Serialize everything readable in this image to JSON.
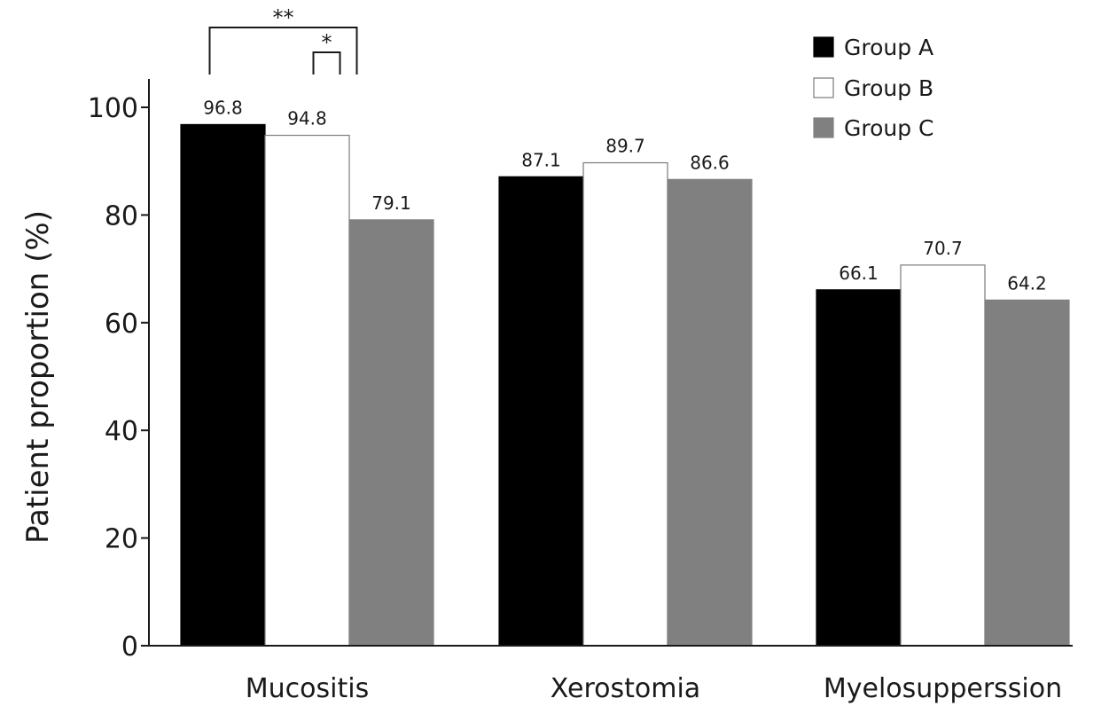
{
  "chart_data": {
    "type": "bar",
    "title": "",
    "xlabel": "",
    "ylabel": "Patient proportion (%)",
    "ylim": [
      0,
      100
    ],
    "yticks": [
      0,
      20,
      40,
      60,
      80,
      100
    ],
    "grid": false,
    "legend_position": "top-right",
    "categories": [
      "Mucositis",
      "Xerostomia",
      "Myelosupperssion"
    ],
    "series": [
      {
        "name": "Group A",
        "color": "#000000",
        "values": [
          96.8,
          87.1,
          66.1
        ],
        "labels": [
          "96.8",
          "87.1",
          "66.1"
        ]
      },
      {
        "name": "Group B",
        "color": "#ffffff",
        "values": [
          94.8,
          89.7,
          70.7
        ],
        "labels": [
          "94.8",
          "89.7",
          "70.7"
        ]
      },
      {
        "name": "Group C",
        "color": "#808080",
        "values": [
          79.1,
          86.6,
          64.2
        ],
        "labels": [
          "79.1",
          "86.6",
          "64.2"
        ]
      }
    ],
    "annotations": [
      {
        "text": "**",
        "category": "Mucositis",
        "from_series": "Group A",
        "to_series": "Group C"
      },
      {
        "text": "*",
        "category": "Mucositis",
        "from_series": "Group B",
        "to_series": "Group C"
      }
    ]
  }
}
